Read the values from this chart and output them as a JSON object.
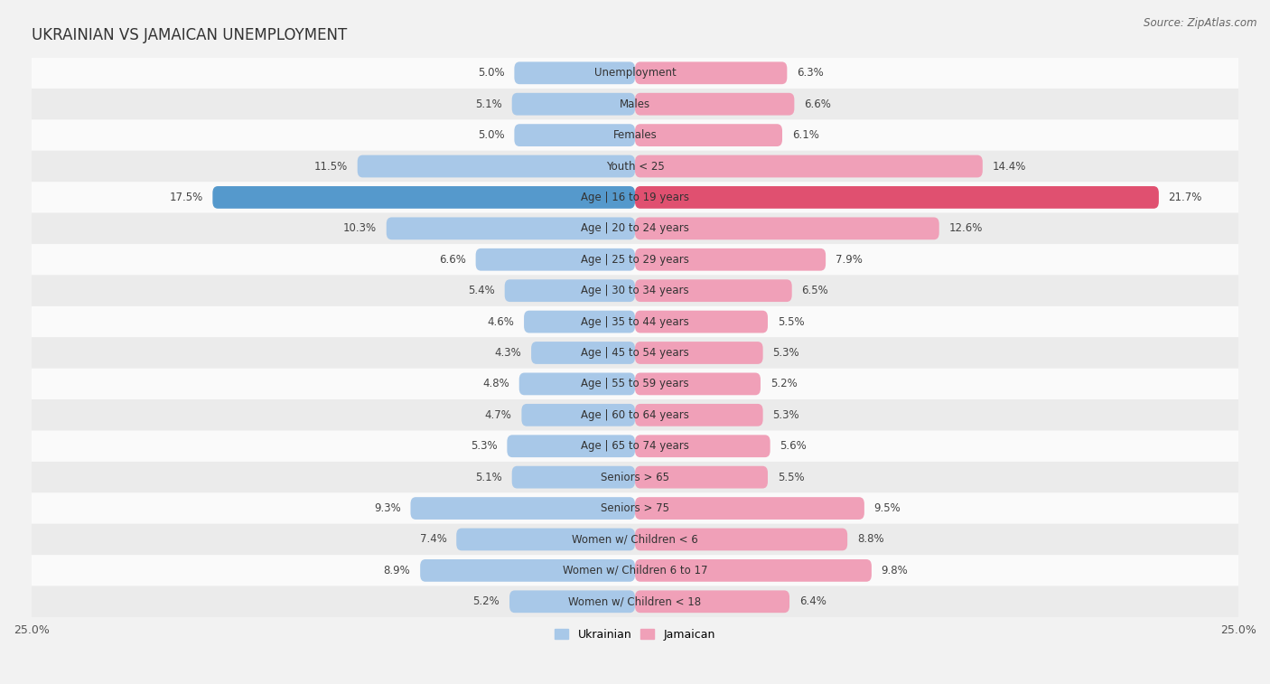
{
  "title": "UKRAINIAN VS JAMAICAN UNEMPLOYMENT",
  "source": "Source: ZipAtlas.com",
  "categories": [
    "Unemployment",
    "Males",
    "Females",
    "Youth < 25",
    "Age | 16 to 19 years",
    "Age | 20 to 24 years",
    "Age | 25 to 29 years",
    "Age | 30 to 34 years",
    "Age | 35 to 44 years",
    "Age | 45 to 54 years",
    "Age | 55 to 59 years",
    "Age | 60 to 64 years",
    "Age | 65 to 74 years",
    "Seniors > 65",
    "Seniors > 75",
    "Women w/ Children < 6",
    "Women w/ Children 6 to 17",
    "Women w/ Children < 18"
  ],
  "ukrainian": [
    5.0,
    5.1,
    5.0,
    11.5,
    17.5,
    10.3,
    6.6,
    5.4,
    4.6,
    4.3,
    4.8,
    4.7,
    5.3,
    5.1,
    9.3,
    7.4,
    8.9,
    5.2
  ],
  "jamaican": [
    6.3,
    6.6,
    6.1,
    14.4,
    21.7,
    12.6,
    7.9,
    6.5,
    5.5,
    5.3,
    5.2,
    5.3,
    5.6,
    5.5,
    9.5,
    8.8,
    9.8,
    6.4
  ],
  "ukrainian_color": "#a8c8e8",
  "jamaican_color": "#f0a0b8",
  "highlight_ukrainian_color": "#5599cc",
  "highlight_jamaican_color": "#e05070",
  "highlight_index": 4,
  "background_color": "#f2f2f2",
  "row_light_color": "#fafafa",
  "row_dark_color": "#ebebeb",
  "axis_max": 25.0,
  "bar_height": 0.72,
  "legend_ukrainian": "Ukrainian",
  "legend_jamaican": "Jamaican",
  "title_fontsize": 12,
  "source_fontsize": 8.5,
  "label_fontsize": 9,
  "value_fontsize": 8.5,
  "category_fontsize": 8.5
}
